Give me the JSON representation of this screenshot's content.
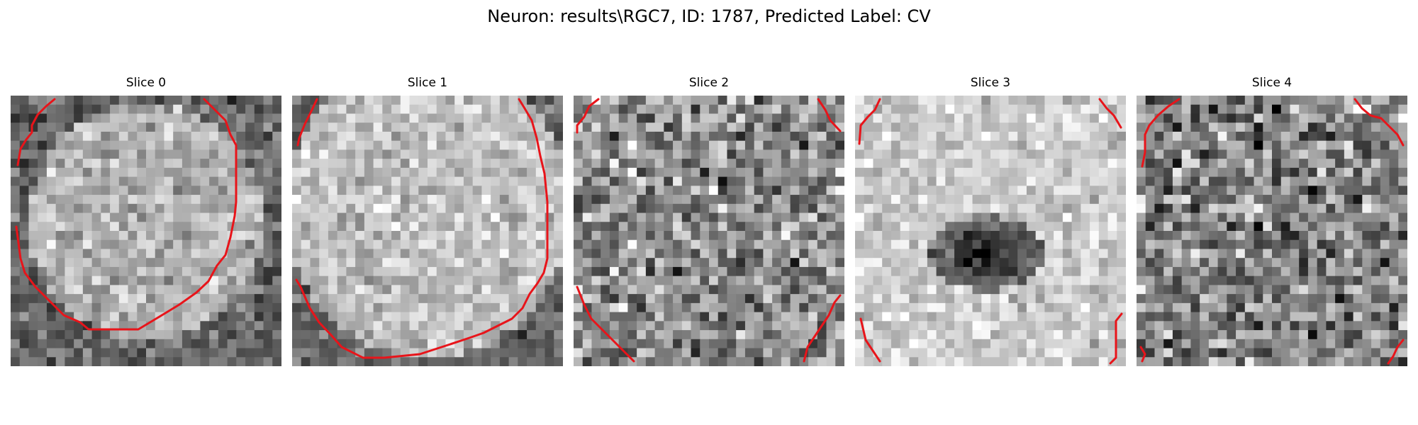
{
  "title": "Neuron: results\\RGC7, ID: 1787, Predicted Label: CV",
  "panels": [
    {
      "label": "Slice 0"
    },
    {
      "label": "Slice 1"
    },
    {
      "label": "Slice 2"
    },
    {
      "label": "Slice 3"
    },
    {
      "label": "Slice 4"
    }
  ],
  "colors": {
    "contour": "#e8141a",
    "background": "#ffffff"
  }
}
